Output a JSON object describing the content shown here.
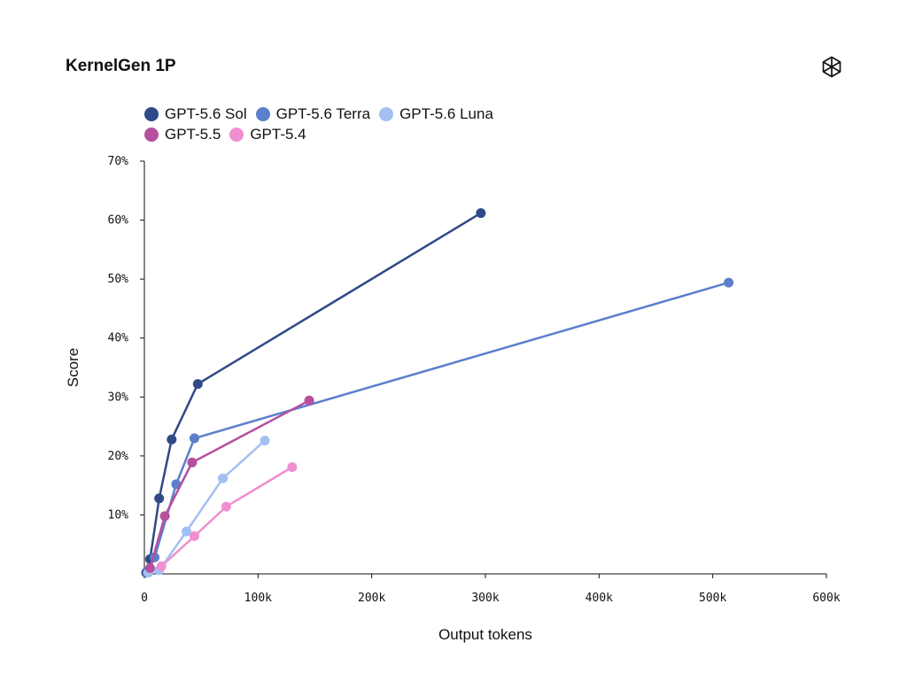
{
  "page": {
    "title": "KernelGen 1P",
    "logo_icon": "openai-logo-icon"
  },
  "chart_data": {
    "type": "line",
    "title": "KernelGen 1P",
    "xlabel": "Output tokens",
    "ylabel": "Score",
    "xlim": [
      0,
      600000
    ],
    "ylim": [
      0,
      70
    ],
    "xticks": [
      0,
      100000,
      200000,
      300000,
      400000,
      500000,
      600000
    ],
    "xtick_labels": [
      "0",
      "100k",
      "200k",
      "300k",
      "400k",
      "500k",
      "600k"
    ],
    "yticks": [
      10,
      20,
      30,
      40,
      50,
      60,
      70
    ],
    "ytick_labels": [
      "10%",
      "20%",
      "30%",
      "40%",
      "50%",
      "60%",
      "70%"
    ],
    "grid": false,
    "legend_position": "top-left",
    "series": [
      {
        "name": "GPT-5.6 Sol",
        "color": "#2f4a86",
        "x": [
          1500,
          5000,
          13000,
          24000,
          47000,
          296000
        ],
        "y": [
          0.2,
          2.5,
          12.8,
          22.8,
          32.2,
          61.2
        ]
      },
      {
        "name": "GPT-5.6 Terra",
        "color": "#5b7fcb",
        "x": [
          2500,
          9000,
          28000,
          44000,
          514000
        ],
        "y": [
          0.2,
          2.8,
          15.2,
          23.0,
          49.4
        ]
      },
      {
        "name": "GPT-5.6 Luna",
        "color": "#a4bff2",
        "x": [
          3500,
          13000,
          37000,
          69000,
          106000
        ],
        "y": [
          0.2,
          0.6,
          7.2,
          16.2,
          22.6
        ]
      },
      {
        "name": "GPT-5.5",
        "color": "#b64f9e",
        "x": [
          5000,
          18000,
          42000,
          145000
        ],
        "y": [
          1.0,
          9.8,
          18.9,
          29.4
        ]
      },
      {
        "name": "GPT-5.4",
        "color": "#ef8fcf",
        "x": [
          15000,
          44000,
          72000,
          130000
        ],
        "y": [
          1.3,
          6.4,
          11.4,
          18.1
        ]
      }
    ]
  },
  "legend_rows": [
    [
      {
        "label": "GPT-5.6 Sol",
        "color": "#2f4a86"
      },
      {
        "label": "GPT-5.6 Terra",
        "color": "#5b7fcb"
      },
      {
        "label": "GPT-5.6 Luna",
        "color": "#a4bff2"
      }
    ],
    [
      {
        "label": "GPT-5.5",
        "color": "#b64f9e"
      },
      {
        "label": "GPT-5.4",
        "color": "#ef8fcf"
      }
    ]
  ]
}
